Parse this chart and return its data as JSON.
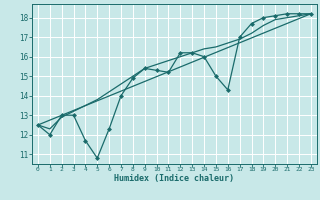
{
  "xlabel": "Humidex (Indice chaleur)",
  "bg_color": "#c8e8e8",
  "grid_color": "#ffffff",
  "line_color": "#1a6b6b",
  "xlim": [
    -0.5,
    23.5
  ],
  "ylim": [
    10.5,
    18.7
  ],
  "xticks": [
    0,
    1,
    2,
    3,
    4,
    5,
    6,
    7,
    8,
    9,
    10,
    11,
    12,
    13,
    14,
    15,
    16,
    17,
    18,
    19,
    20,
    21,
    22,
    23
  ],
  "yticks": [
    11,
    12,
    13,
    14,
    15,
    16,
    17,
    18
  ],
  "series1_x": [
    0,
    1,
    2,
    3,
    4,
    5,
    6,
    7,
    8,
    9,
    10,
    11,
    12,
    13,
    14,
    15,
    16,
    17,
    18,
    19,
    20,
    21,
    22,
    23
  ],
  "series1_y": [
    12.5,
    12.0,
    13.0,
    13.0,
    11.7,
    10.8,
    12.3,
    14.0,
    14.9,
    15.4,
    15.3,
    15.2,
    16.2,
    16.2,
    16.0,
    15.0,
    14.3,
    17.0,
    17.7,
    18.0,
    18.1,
    18.2,
    18.2,
    18.2
  ],
  "series2_x": [
    0,
    23
  ],
  "series2_y": [
    12.5,
    18.2
  ],
  "series3_x": [
    0,
    1,
    2,
    3,
    4,
    5,
    6,
    7,
    8,
    9,
    10,
    11,
    12,
    13,
    14,
    15,
    16,
    17,
    18,
    19,
    20,
    21,
    22,
    23
  ],
  "series3_y": [
    12.5,
    12.3,
    12.9,
    13.2,
    13.5,
    13.8,
    14.2,
    14.6,
    15.0,
    15.4,
    15.6,
    15.8,
    16.0,
    16.2,
    16.4,
    16.5,
    16.7,
    16.9,
    17.2,
    17.6,
    17.9,
    18.0,
    18.1,
    18.2
  ]
}
